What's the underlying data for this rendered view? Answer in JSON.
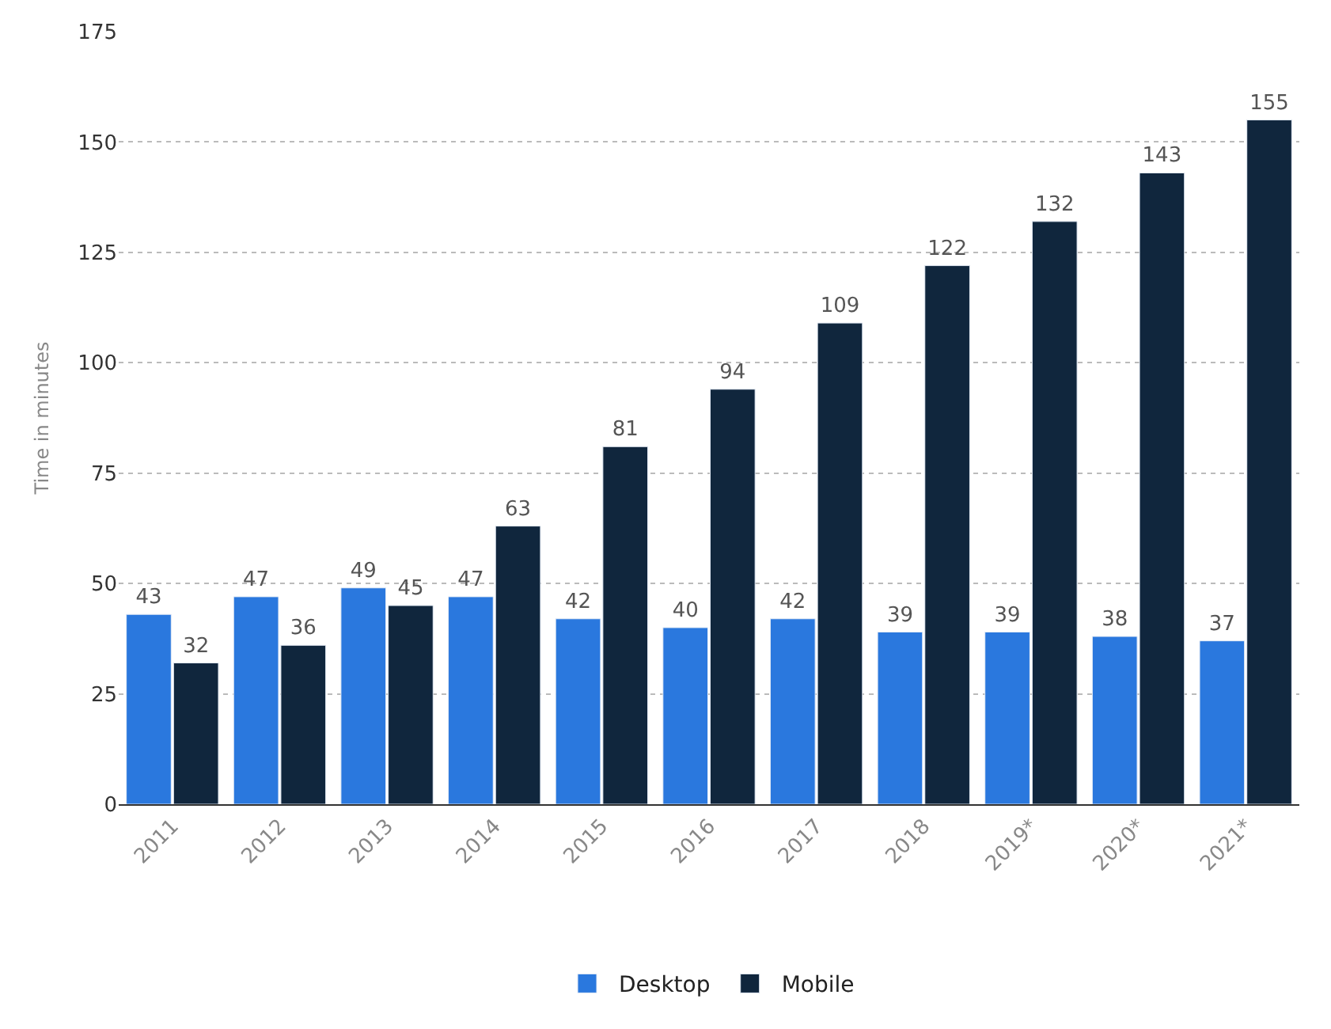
{
  "chart_data": {
    "type": "bar",
    "ylabel": "Time in minutes",
    "categories": [
      "2011",
      "2012",
      "2013",
      "2014",
      "2015",
      "2016",
      "2017",
      "2018",
      "2019*",
      "2020*",
      "2021*"
    ],
    "series": [
      {
        "name": "Desktop",
        "color": "#2a78de",
        "values": [
          43,
          47,
          49,
          47,
          42,
          40,
          42,
          39,
          39,
          38,
          37
        ]
      },
      {
        "name": "Mobile",
        "color": "#10263d",
        "values": [
          32,
          36,
          45,
          63,
          81,
          94,
          109,
          122,
          132,
          143,
          155
        ]
      }
    ],
    "ylim": [
      0,
      175
    ],
    "yticks": [
      0,
      25,
      50,
      75,
      100,
      125,
      150,
      175
    ],
    "grid": "y",
    "legend": "bottom",
    "data_labels": true
  }
}
